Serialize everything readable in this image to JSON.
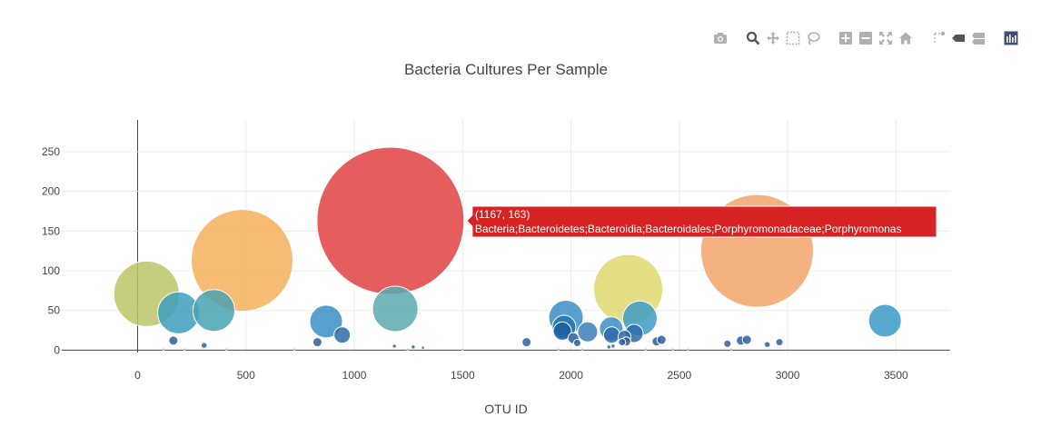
{
  "modebar": {
    "buttons": [
      {
        "name": "camera-icon"
      },
      {
        "name": "zoom-icon"
      },
      {
        "name": "pan-icon"
      },
      {
        "name": "box-select-icon"
      },
      {
        "name": "lasso-select-icon"
      },
      {
        "name": "zoom-in-icon"
      },
      {
        "name": "zoom-out-icon"
      },
      {
        "name": "autoscale-icon"
      },
      {
        "name": "home-icon"
      },
      {
        "name": "spike-lines-icon"
      },
      {
        "name": "hover-closest-icon"
      },
      {
        "name": "hover-compare-icon"
      },
      {
        "name": "plotly-logo-icon"
      }
    ]
  },
  "chart_data": {
    "type": "scatter",
    "subtype": "bubble",
    "title": "Bacteria Cultures Per Sample",
    "xlabel": "OTU ID",
    "ylabel": "",
    "xlim": [
      -350,
      3750
    ],
    "ylim": [
      -3,
      290
    ],
    "xticks": [
      0,
      500,
      1000,
      1500,
      2000,
      2500,
      3000,
      3500
    ],
    "yticks": [
      0,
      50,
      100,
      150,
      200,
      250
    ],
    "grid": true,
    "legend": "none",
    "points": [
      {
        "x": 41,
        "y": 71,
        "r": 36,
        "color": "#bcc567"
      },
      {
        "x": 189,
        "y": 47,
        "r": 23,
        "color": "#3d9ebd"
      },
      {
        "x": 352,
        "y": 50,
        "r": 23,
        "color": "#49a3b3"
      },
      {
        "x": 482,
        "y": 113,
        "r": 56,
        "color": "#f5b05a"
      },
      {
        "x": 870,
        "y": 36,
        "r": 18,
        "color": "#3a8fc4"
      },
      {
        "x": 944,
        "y": 19,
        "r": 9,
        "color": "#2d6aab"
      },
      {
        "x": 830,
        "y": 10,
        "r": 5,
        "color": "#2d5e9f"
      },
      {
        "x": 165,
        "y": 12,
        "r": 5,
        "color": "#2d5e9f"
      },
      {
        "x": 307,
        "y": 6,
        "r": 3,
        "color": "#2d5e9f"
      },
      {
        "x": 1167,
        "y": 163,
        "r": 81,
        "color": "#e04141"
      },
      {
        "x": 1189,
        "y": 52,
        "r": 25,
        "color": "#5aaaaf"
      },
      {
        "x": 1795,
        "y": 10,
        "r": 5,
        "color": "#2d5e9f"
      },
      {
        "x": 1977,
        "y": 41,
        "r": 19,
        "color": "#3a8fc4"
      },
      {
        "x": 1968,
        "y": 29,
        "r": 13,
        "color": "#2573b6"
      },
      {
        "x": 1960,
        "y": 24,
        "r": 10,
        "color": "#1f5fa0"
      },
      {
        "x": 2011,
        "y": 15,
        "r": 6,
        "color": "#2d5e9f"
      },
      {
        "x": 2029,
        "y": 9,
        "r": 4,
        "color": "#2d5e9f"
      },
      {
        "x": 2077,
        "y": 23,
        "r": 11,
        "color": "#3a7fb8"
      },
      {
        "x": 2186,
        "y": 27,
        "r": 13,
        "color": "#3a8fc4"
      },
      {
        "x": 2188,
        "y": 19,
        "r": 9,
        "color": "#2d6aab"
      },
      {
        "x": 2264,
        "y": 77,
        "r": 38,
        "color": "#dfd86e"
      },
      {
        "x": 2318,
        "y": 40,
        "r": 19,
        "color": "#3d9ec4"
      },
      {
        "x": 2291,
        "y": 21,
        "r": 10,
        "color": "#2d6aab"
      },
      {
        "x": 2247,
        "y": 17,
        "r": 7,
        "color": "#2d6aab"
      },
      {
        "x": 2255,
        "y": 11,
        "r": 5,
        "color": "#2d5e9f"
      },
      {
        "x": 2236,
        "y": 10,
        "r": 4,
        "color": "#2d5e9f"
      },
      {
        "x": 2395,
        "y": 11,
        "r": 5,
        "color": "#2d5e9f"
      },
      {
        "x": 2418,
        "y": 13,
        "r": 5,
        "color": "#2d5e9f"
      },
      {
        "x": 2722,
        "y": 8,
        "r": 4,
        "color": "#2d5e9f"
      },
      {
        "x": 2784,
        "y": 12,
        "r": 5,
        "color": "#2d5e9f"
      },
      {
        "x": 2812,
        "y": 13,
        "r": 5,
        "color": "#2d5e9f"
      },
      {
        "x": 2859,
        "y": 125,
        "r": 62,
        "color": "#f2a56a"
      },
      {
        "x": 2906,
        "y": 7,
        "r": 3,
        "color": "#2d5e9f"
      },
      {
        "x": 2962,
        "y": 10,
        "r": 4,
        "color": "#2d5e9f"
      },
      {
        "x": 3449,
        "y": 37,
        "r": 18,
        "color": "#3a9ac8"
      },
      {
        "x": 1185,
        "y": 5,
        "r": 2,
        "color": "#2d5e9f"
      },
      {
        "x": 1272,
        "y": 4,
        "r": 2,
        "color": "#2d5e9f"
      },
      {
        "x": 1317,
        "y": 3,
        "r": 1.5,
        "color": "#2d5e9f"
      },
      {
        "x": 2194,
        "y": 5,
        "r": 2,
        "color": "#2d5e9f"
      },
      {
        "x": 2175,
        "y": 4,
        "r": 2,
        "color": "#2d5e9f"
      },
      {
        "x": 120,
        "y": 1,
        "r": 1.2,
        "color": "#9aa3c8"
      },
      {
        "x": 217,
        "y": 1,
        "r": 1.2,
        "color": "#9aa3c8"
      },
      {
        "x": 410,
        "y": 1,
        "r": 1.2,
        "color": "#9aa3c8"
      },
      {
        "x": 723,
        "y": 1,
        "r": 1.2,
        "color": "#9aa3c8"
      },
      {
        "x": 1245,
        "y": 1,
        "r": 1.2,
        "color": "#9aa3c8"
      },
      {
        "x": 1500,
        "y": 1,
        "r": 1.2,
        "color": "#9aa3c8"
      },
      {
        "x": 1943,
        "y": 1,
        "r": 1.2,
        "color": "#9aa3c8"
      },
      {
        "x": 2050,
        "y": 1,
        "r": 1.2,
        "color": "#9aa3c8"
      },
      {
        "x": 2346,
        "y": 1,
        "r": 1.2,
        "color": "#9aa3c8"
      },
      {
        "x": 2470,
        "y": 1,
        "r": 1.2,
        "color": "#9aa3c8"
      },
      {
        "x": 2540,
        "y": 1,
        "r": 1.2,
        "color": "#9aa3c8"
      },
      {
        "x": 2740,
        "y": 1,
        "r": 1.2,
        "color": "#9aa3c8"
      }
    ],
    "hover": {
      "x": 1167,
      "y": 163,
      "line1": "(1167, 163)",
      "line2": "Bacteria;Bacteroidetes;Bacteroidia;Bacteroidales;Porphyromonadaceae;Porphyromonas",
      "color": "#d62222"
    }
  }
}
